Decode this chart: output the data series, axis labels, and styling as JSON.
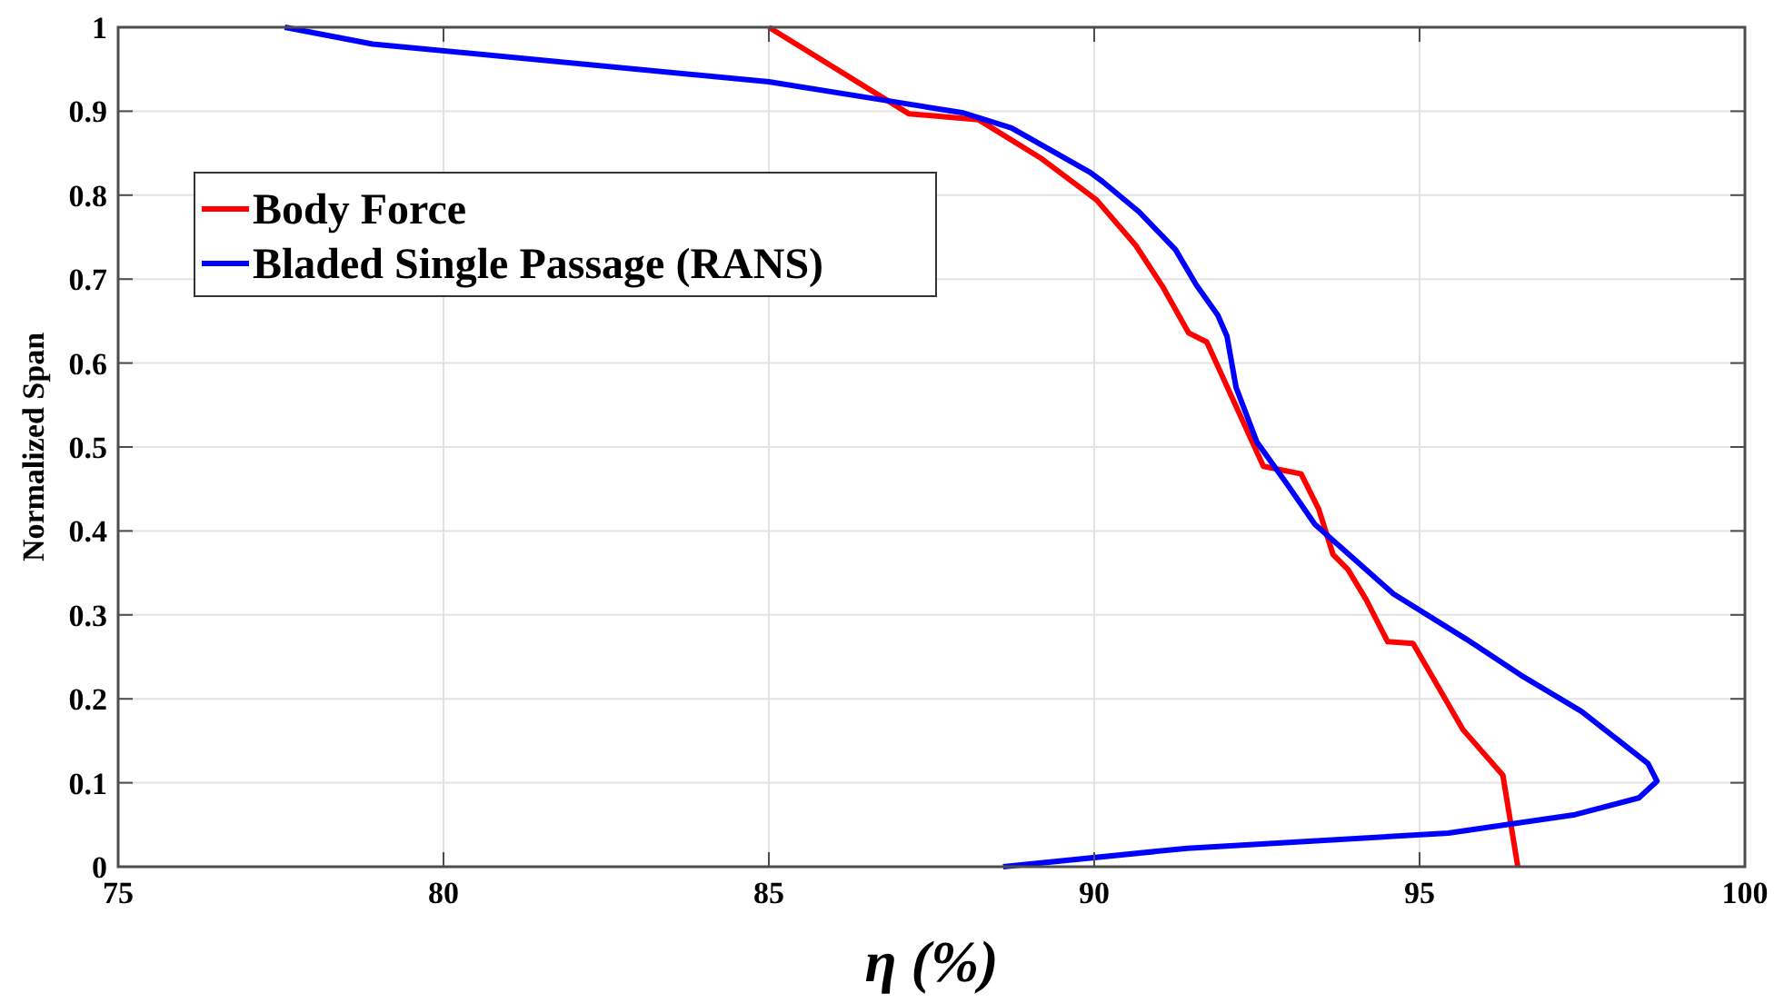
{
  "chart_data": {
    "type": "line",
    "xlabel": "η (%)",
    "ylabel": "Normalized Span",
    "xlim": [
      75,
      100
    ],
    "xticks": [
      75,
      80,
      85,
      90,
      95,
      100
    ],
    "ylim": [
      0,
      1
    ],
    "yticks": [
      0,
      0.1,
      0.2,
      0.3,
      0.4,
      0.5,
      0.6,
      0.7,
      0.8,
      0.9,
      1
    ],
    "grid": true,
    "legend": "top left",
    "series": [
      {
        "name": "Body Force",
        "color": "#ff0000",
        "x": [
          85.0,
          87.15,
          88.22,
          89.2,
          89.94,
          90.04,
          90.64,
          91.06,
          91.45,
          91.73,
          92.6,
          93.18,
          93.45,
          93.67,
          93.9,
          94.18,
          94.51,
          94.9,
          95.67,
          96.28,
          96.51
        ],
        "values": [
          1.0,
          0.897,
          0.89,
          0.843,
          0.8,
          0.794,
          0.74,
          0.69,
          0.636,
          0.625,
          0.477,
          0.468,
          0.426,
          0.372,
          0.354,
          0.318,
          0.268,
          0.266,
          0.163,
          0.109,
          0.0
        ]
      },
      {
        "name": "Bladed Single Passage (RANS)",
        "color": "#0000ff",
        "x": [
          77.56,
          78.91,
          85.0,
          86.78,
          87.99,
          88.73,
          89.94,
          90.13,
          90.69,
          91.25,
          91.57,
          91.9,
          92.04,
          92.18,
          92.5,
          92.97,
          93.39,
          94.6,
          95.72,
          96.56,
          97.49,
          98.51,
          98.65,
          98.37,
          97.39,
          95.44,
          91.43,
          88.6
        ],
        "values": [
          1.0,
          0.98,
          0.935,
          0.913,
          0.898,
          0.88,
          0.827,
          0.816,
          0.78,
          0.735,
          0.693,
          0.657,
          0.632,
          0.571,
          0.506,
          0.455,
          0.408,
          0.325,
          0.271,
          0.228,
          0.185,
          0.123,
          0.102,
          0.082,
          0.062,
          0.04,
          0.022,
          0.0
        ]
      }
    ]
  }
}
